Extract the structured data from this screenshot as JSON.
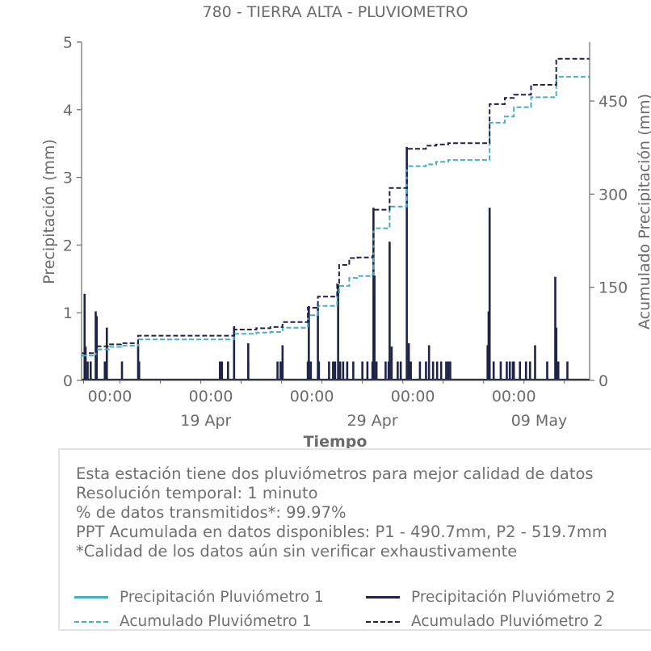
{
  "colors": {
    "p1": "#45b0c1",
    "p2": "#1f2346",
    "text": "#6b6b6b",
    "axis": "#6b6b6b"
  },
  "chart_data": {
    "type": "line",
    "title": "780 - TIERRA ALTA - PLUVIOMETRO",
    "xlabel": "Tiempo",
    "ylabel": "Precipitación (mm)",
    "ylabel_right": "Acumulado Precipitación (mm)",
    "ylim": [
      0,
      5
    ],
    "ylim_right": [
      0,
      545
    ],
    "y_ticks": [
      "0",
      "1",
      "2",
      "3",
      "4",
      "5"
    ],
    "y_right_ticks": [
      "0",
      "150",
      "300",
      "450"
    ],
    "x_ticks_top": [
      "00:00",
      "00:00",
      "00:00",
      "00:00",
      "00:00"
    ],
    "x_ticks_bottom": [
      "19 Apr",
      "29 Apr",
      "09 May"
    ],
    "x_range_days_from_apr_14": [
      -0.15,
      25.0
    ],
    "precip_p2_spikes": [
      {
        "x": 0.0,
        "y": 1.28
      },
      {
        "x": 0.05,
        "y": 0.5
      },
      {
        "x": 0.15,
        "y": 0.28
      },
      {
        "x": 0.3,
        "y": 0.28
      },
      {
        "x": 0.55,
        "y": 1.02
      },
      {
        "x": 0.6,
        "y": 0.95
      },
      {
        "x": 1.0,
        "y": 0.28
      },
      {
        "x": 1.1,
        "y": 0.78
      },
      {
        "x": 1.85,
        "y": 0.28
      },
      {
        "x": 2.65,
        "y": 0.55
      },
      {
        "x": 2.7,
        "y": 0.28
      },
      {
        "x": 6.7,
        "y": 0.28
      },
      {
        "x": 6.8,
        "y": 0.28
      },
      {
        "x": 7.1,
        "y": 0.28
      },
      {
        "x": 7.4,
        "y": 0.8
      },
      {
        "x": 8.1,
        "y": 0.28
      },
      {
        "x": 8.1,
        "y": 0.55
      },
      {
        "x": 9.55,
        "y": 0.28
      },
      {
        "x": 9.7,
        "y": 0.28
      },
      {
        "x": 9.8,
        "y": 0.52
      },
      {
        "x": 11.05,
        "y": 0.28
      },
      {
        "x": 11.1,
        "y": 1.1
      },
      {
        "x": 11.2,
        "y": 0.28
      },
      {
        "x": 11.55,
        "y": 1.1
      },
      {
        "x": 11.6,
        "y": 0.28
      },
      {
        "x": 12.1,
        "y": 0.28
      },
      {
        "x": 12.3,
        "y": 0.28
      },
      {
        "x": 12.4,
        "y": 0.28
      },
      {
        "x": 12.55,
        "y": 1.42
      },
      {
        "x": 12.65,
        "y": 0.28
      },
      {
        "x": 12.8,
        "y": 0.28
      },
      {
        "x": 13.0,
        "y": 0.28
      },
      {
        "x": 13.3,
        "y": 0.28
      },
      {
        "x": 13.75,
        "y": 0.28
      },
      {
        "x": 14.0,
        "y": 0.28
      },
      {
        "x": 14.25,
        "y": 0.28
      },
      {
        "x": 14.3,
        "y": 2.55
      },
      {
        "x": 14.35,
        "y": 1.55
      },
      {
        "x": 14.45,
        "y": 0.28
      },
      {
        "x": 14.9,
        "y": 0.28
      },
      {
        "x": 15.05,
        "y": 0.28
      },
      {
        "x": 15.1,
        "y": 2.05
      },
      {
        "x": 15.2,
        "y": 0.5
      },
      {
        "x": 15.5,
        "y": 0.28
      },
      {
        "x": 15.65,
        "y": 0.28
      },
      {
        "x": 15.95,
        "y": 3.45
      },
      {
        "x": 16.05,
        "y": 0.55
      },
      {
        "x": 16.15,
        "y": 0.28
      },
      {
        "x": 16.6,
        "y": 0.28
      },
      {
        "x": 16.9,
        "y": 0.28
      },
      {
        "x": 17.05,
        "y": 0.52
      },
      {
        "x": 17.25,
        "y": 0.28
      },
      {
        "x": 17.45,
        "y": 0.28
      },
      {
        "x": 17.65,
        "y": 0.28
      },
      {
        "x": 17.9,
        "y": 0.28
      },
      {
        "x": 18.0,
        "y": 0.28
      },
      {
        "x": 18.1,
        "y": 0.28
      },
      {
        "x": 19.95,
        "y": 0.52
      },
      {
        "x": 20.0,
        "y": 1.02
      },
      {
        "x": 20.05,
        "y": 2.55
      },
      {
        "x": 20.25,
        "y": 0.28
      },
      {
        "x": 20.6,
        "y": 0.28
      },
      {
        "x": 20.9,
        "y": 0.28
      },
      {
        "x": 21.05,
        "y": 0.28
      },
      {
        "x": 21.2,
        "y": 0.28
      },
      {
        "x": 21.25,
        "y": 0.28
      },
      {
        "x": 21.55,
        "y": 0.28
      },
      {
        "x": 21.85,
        "y": 0.28
      },
      {
        "x": 22.05,
        "y": 0.28
      },
      {
        "x": 22.3,
        "y": 0.52
      },
      {
        "x": 22.9,
        "y": 0.28
      },
      {
        "x": 23.3,
        "y": 1.53
      },
      {
        "x": 23.35,
        "y": 0.78
      },
      {
        "x": 23.45,
        "y": 0.28
      },
      {
        "x": 23.9,
        "y": 0.28
      }
    ],
    "acum_p1": [
      {
        "x": -0.15,
        "y": 40
      },
      {
        "x": 0.55,
        "y": 50
      },
      {
        "x": 1.2,
        "y": 54
      },
      {
        "x": 1.8,
        "y": 56
      },
      {
        "x": 2.65,
        "y": 66
      },
      {
        "x": 7.4,
        "y": 75
      },
      {
        "x": 8.5,
        "y": 77
      },
      {
        "x": 9.2,
        "y": 78
      },
      {
        "x": 9.8,
        "y": 85
      },
      {
        "x": 11.05,
        "y": 105
      },
      {
        "x": 11.55,
        "y": 120
      },
      {
        "x": 12.5,
        "y": 140
      },
      {
        "x": 12.6,
        "y": 152
      },
      {
        "x": 13.1,
        "y": 165
      },
      {
        "x": 13.5,
        "y": 168
      },
      {
        "x": 14.25,
        "y": 170
      },
      {
        "x": 14.3,
        "y": 245
      },
      {
        "x": 15.1,
        "y": 280
      },
      {
        "x": 15.95,
        "y": 345
      },
      {
        "x": 16.9,
        "y": 348
      },
      {
        "x": 17.4,
        "y": 352
      },
      {
        "x": 18.0,
        "y": 355
      },
      {
        "x": 20.05,
        "y": 415
      },
      {
        "x": 20.8,
        "y": 425
      },
      {
        "x": 21.25,
        "y": 440
      },
      {
        "x": 22.1,
        "y": 456
      },
      {
        "x": 23.35,
        "y": 489
      },
      {
        "x": 25.0,
        "y": 489
      }
    ],
    "acum_p2": [
      {
        "x": -0.15,
        "y": 44
      },
      {
        "x": 0.55,
        "y": 55
      },
      {
        "x": 1.2,
        "y": 58
      },
      {
        "x": 1.8,
        "y": 60
      },
      {
        "x": 2.65,
        "y": 72
      },
      {
        "x": 7.4,
        "y": 82
      },
      {
        "x": 8.5,
        "y": 84
      },
      {
        "x": 9.2,
        "y": 86
      },
      {
        "x": 9.8,
        "y": 94
      },
      {
        "x": 11.05,
        "y": 117
      },
      {
        "x": 11.55,
        "y": 135
      },
      {
        "x": 12.5,
        "y": 155
      },
      {
        "x": 12.6,
        "y": 186
      },
      {
        "x": 13.1,
        "y": 197
      },
      {
        "x": 13.5,
        "y": 198
      },
      {
        "x": 14.25,
        "y": 200
      },
      {
        "x": 14.3,
        "y": 275
      },
      {
        "x": 15.1,
        "y": 310
      },
      {
        "x": 15.95,
        "y": 373
      },
      {
        "x": 16.9,
        "y": 378
      },
      {
        "x": 17.4,
        "y": 380
      },
      {
        "x": 18.0,
        "y": 382
      },
      {
        "x": 20.05,
        "y": 445
      },
      {
        "x": 20.8,
        "y": 455
      },
      {
        "x": 21.25,
        "y": 460
      },
      {
        "x": 22.1,
        "y": 476
      },
      {
        "x": 23.35,
        "y": 518
      },
      {
        "x": 25.0,
        "y": 518
      }
    ],
    "grid": false,
    "legend_placement": "bottom"
  },
  "info": {
    "line1": "Esta estación tiene dos pluviómetros para mejor calidad de datos",
    "line2": "Resolución temporal: 1 minuto",
    "line3": "% de datos transmitidos*: 99.97%",
    "line4": "PPT Acumulada en datos disponibles: P1 - 490.7mm, P2 - 519.7mm",
    "line5": "*Calidad de los datos aún sin verificar exhaustivamente"
  },
  "legend": {
    "p1_precip": "Precipitación Pluviómetro 1",
    "p2_precip": "Precipitación Pluviómetro 2",
    "p1_acum": "Acumulado Pluviómetro 1",
    "p2_acum": "Acumulado Pluviómetro 2"
  }
}
